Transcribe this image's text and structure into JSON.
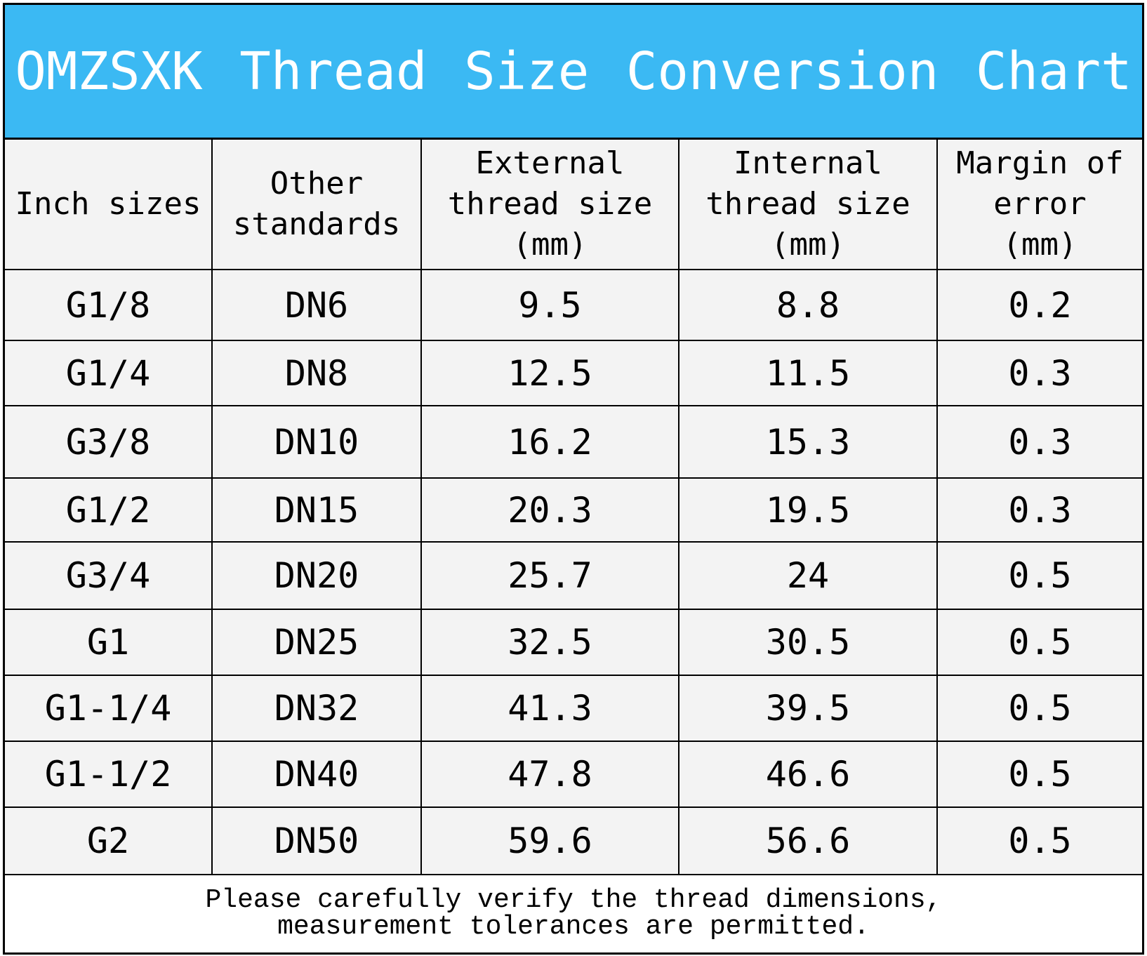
{
  "title": "OMZSXK Thread Size Conversion Chart",
  "table": {
    "header": [
      [
        "Inch sizes"
      ],
      [
        "Other",
        "standards"
      ],
      [
        "External",
        "thread size",
        "(mm)"
      ],
      [
        "Internal",
        "thread size",
        "(mm)"
      ],
      [
        "Margin of",
        "error",
        "(mm)"
      ]
    ],
    "rows": [
      [
        "G1/8",
        "DN6",
        "9.5",
        "8.8",
        "0.2"
      ],
      [
        "G1/4",
        "DN8",
        "12.5",
        "11.5",
        "0.3"
      ],
      [
        "G3/8",
        "DN10",
        "16.2",
        "15.3",
        "0.3"
      ],
      [
        "G1/2",
        "DN15",
        "20.3",
        "19.5",
        "0.3"
      ],
      [
        "G3/4",
        "DN20",
        "25.7",
        "24",
        "0.5"
      ],
      [
        "G1",
        "DN25",
        "32.5",
        "30.5",
        "0.5"
      ],
      [
        "G1-1/4",
        "DN32",
        "41.3",
        "39.5",
        "0.5"
      ],
      [
        "G1-1/2",
        "DN40",
        "47.8",
        "46.6",
        "0.5"
      ],
      [
        "G2",
        "DN50",
        "59.6",
        "56.6",
        "0.5"
      ]
    ]
  },
  "footer": [
    "Please carefully verify the thread dimensions,",
    "measurement tolerances are permitted."
  ]
}
